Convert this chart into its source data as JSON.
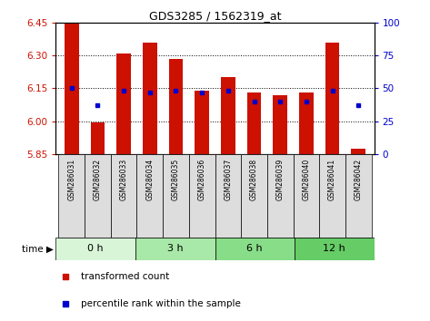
{
  "title": "GDS3285 / 1562319_at",
  "samples": [
    "GSM286031",
    "GSM286032",
    "GSM286033",
    "GSM286034",
    "GSM286035",
    "GSM286036",
    "GSM286037",
    "GSM286038",
    "GSM286039",
    "GSM286040",
    "GSM286041",
    "GSM286042"
  ],
  "red_values": [
    6.45,
    5.995,
    6.31,
    6.36,
    6.285,
    6.14,
    6.2,
    6.13,
    6.12,
    6.13,
    6.36,
    5.875
  ],
  "blue_values": [
    50,
    37,
    48,
    47,
    48,
    47,
    48,
    40,
    40,
    40,
    48,
    37
  ],
  "y_min": 5.85,
  "y_max": 6.45,
  "y_ticks_left": [
    5.85,
    6.0,
    6.15,
    6.3,
    6.45
  ],
  "y_ticks_right": [
    0,
    25,
    50,
    75,
    100
  ],
  "groups": [
    {
      "label": "0 h",
      "start": 0,
      "end": 3,
      "color": "#d8f5d8"
    },
    {
      "label": "3 h",
      "start": 3,
      "end": 6,
      "color": "#a8e8a8"
    },
    {
      "label": "6 h",
      "start": 6,
      "end": 9,
      "color": "#88dd88"
    },
    {
      "label": "12 h",
      "start": 9,
      "end": 12,
      "color": "#66cc66"
    }
  ],
  "bar_color": "#cc1100",
  "blue_color": "#0000cc",
  "baseline": 5.85,
  "grid_color": "#000000",
  "left_label_color": "#cc1100",
  "right_label_color": "#0000cc",
  "legend_red": "transformed count",
  "legend_blue": "percentile rank within the sample",
  "bar_width": 0.55,
  "sample_box_color": "#dddddd"
}
